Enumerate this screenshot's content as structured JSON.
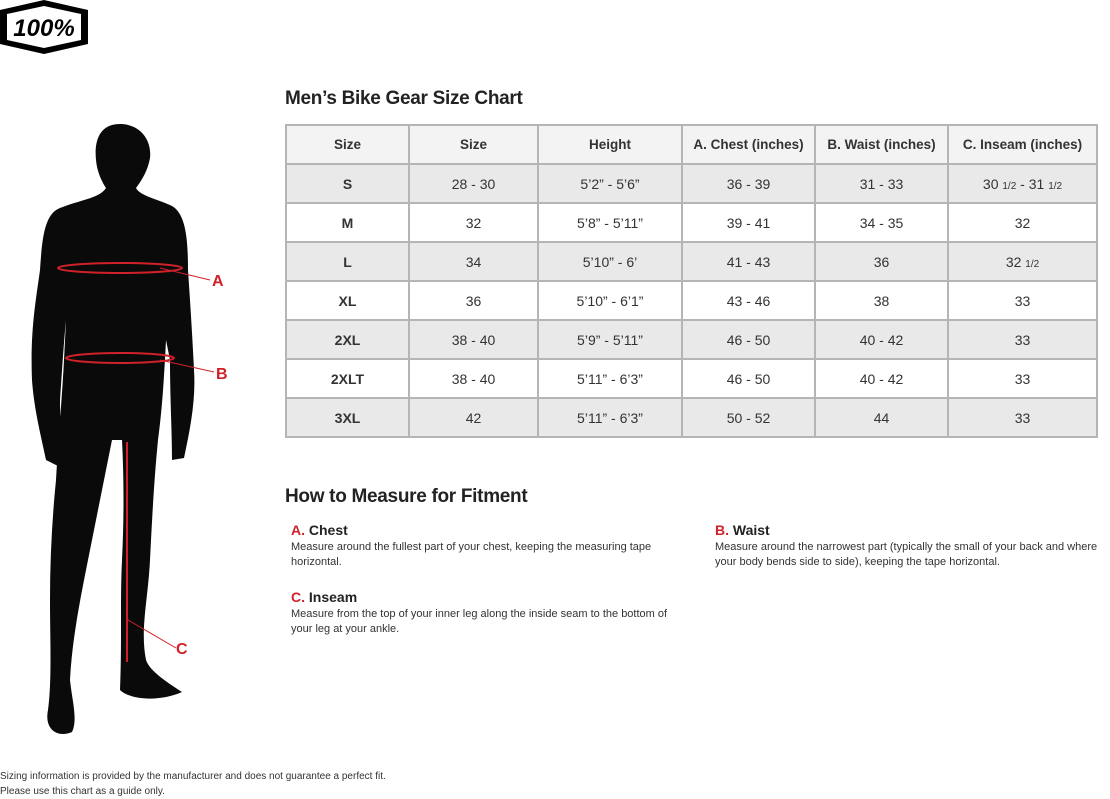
{
  "brand": {
    "logo_text": "100%"
  },
  "title": "Men’s Bike Gear Size Chart",
  "table": {
    "headers": [
      "Size",
      "Size",
      "Height",
      "A. Chest (inches)",
      "B. Waist (inches)",
      "C. Inseam (inches)"
    ],
    "rows": [
      [
        "S",
        "28 - 30",
        "5’2” - 5’6”",
        "36 - 39",
        "31 - 33",
        "30 1/2 - 31 1/2"
      ],
      [
        "M",
        "32",
        "5’8” - 5’11”",
        "39 - 41",
        "34 - 35",
        "32"
      ],
      [
        "L",
        "34",
        "5’10” - 6’",
        "41 - 43",
        "36",
        "32 1/2"
      ],
      [
        "XL",
        "36",
        "5’10” - 6’1”",
        "43 - 46",
        "38",
        "33"
      ],
      [
        "2XL",
        "38 - 40",
        "5’9” - 5’11”",
        "46 - 50",
        "40 - 42",
        "33"
      ],
      [
        "2XLT",
        "38 - 40",
        "5’11” - 6’3”",
        "46 - 50",
        "40 - 42",
        "33"
      ],
      [
        "3XL",
        "42",
        "5’11” - 6’3”",
        "50 - 52",
        "44",
        "33"
      ]
    ]
  },
  "figure_labels": {
    "a": "A",
    "b": "B",
    "c": "C"
  },
  "measure": {
    "title": "How to Measure for Fitment",
    "items": [
      {
        "letter": "A.",
        "name": "Chest",
        "text": "Measure around the fullest part of your chest, keeping the measuring tape horizontal."
      },
      {
        "letter": "B.",
        "name": "Waist",
        "text": "Measure around the narrowest part (typically the small of your back and where your body bends side to side), keeping the tape horizontal."
      },
      {
        "letter": "C.",
        "name": "Inseam",
        "text": "Measure from the top of your inner leg along the inside seam to the bottom of your leg at your ankle."
      }
    ]
  },
  "footer": {
    "line1": "Sizing information is provided by the manufacturer and does not guarantee a perfect fit.",
    "line2": "Please use this chart as a guide only."
  },
  "colors": {
    "accent": "#d0212a",
    "header_bg": "#f3f3f3",
    "row_alt": "#e9e9e9"
  }
}
